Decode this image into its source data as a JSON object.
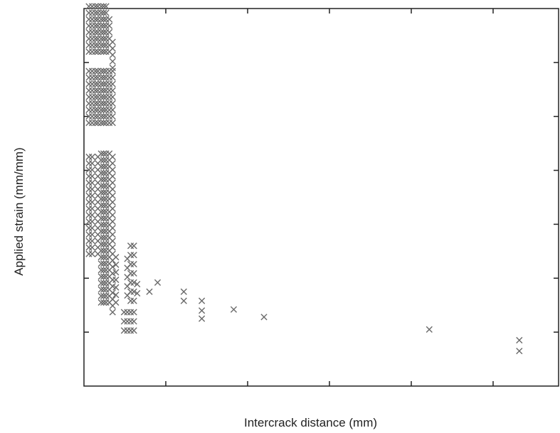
{
  "chart_data": {
    "type": "scatter",
    "title": "",
    "xlabel": "Intercrack distance (mm)",
    "ylabel": "Applied strain (mm/mm)",
    "xlim": [
      0,
      5.8
    ],
    "ylim": [
      0,
      7
    ],
    "xticks": [
      1,
      2,
      3,
      4,
      5
    ],
    "yticks": [
      1,
      2,
      3,
      4,
      5,
      6
    ],
    "tick_labels_visible": false,
    "grid": false,
    "legend": "none",
    "marker": "x",
    "marker_color": "#6a6a6a",
    "series": [
      {
        "columns": [
          {
            "x": 0.06,
            "y_start": 2.45,
            "y_end": 4.32,
            "step": 0.12
          },
          {
            "x": 0.06,
            "y_start": 4.88,
            "y_end": 5.85,
            "step": 0.12
          },
          {
            "x": 0.06,
            "y_start": 6.2,
            "y_end": 7.07,
            "step": 0.12
          },
          {
            "x": 0.1,
            "y_start": 2.45,
            "y_end": 4.32,
            "step": 0.12
          },
          {
            "x": 0.1,
            "y_start": 4.88,
            "y_end": 5.85,
            "step": 0.12
          },
          {
            "x": 0.1,
            "y_start": 6.2,
            "y_end": 7.07,
            "step": 0.12
          },
          {
            "x": 0.14,
            "y_start": 4.88,
            "y_end": 5.85,
            "step": 0.12
          },
          {
            "x": 0.14,
            "y_start": 6.2,
            "y_end": 7.07,
            "step": 0.12
          },
          {
            "x": 0.17,
            "y_start": 2.45,
            "y_end": 4.32,
            "step": 0.12
          },
          {
            "x": 0.17,
            "y_start": 4.88,
            "y_end": 5.85,
            "step": 0.12
          },
          {
            "x": 0.17,
            "y_start": 6.2,
            "y_end": 7.07,
            "step": 0.12
          },
          {
            "x": 0.21,
            "y_start": 1.55,
            "y_end": 4.32,
            "step": 0.12
          },
          {
            "x": 0.21,
            "y_start": 4.88,
            "y_end": 5.85,
            "step": 0.12
          },
          {
            "x": 0.21,
            "y_start": 6.2,
            "y_end": 7.07,
            "step": 0.12
          },
          {
            "x": 0.24,
            "y_start": 1.55,
            "y_end": 4.32,
            "step": 0.12
          },
          {
            "x": 0.24,
            "y_start": 4.88,
            "y_end": 5.85,
            "step": 0.12
          },
          {
            "x": 0.24,
            "y_start": 6.2,
            "y_end": 7.07,
            "step": 0.12
          },
          {
            "x": 0.27,
            "y_start": 1.55,
            "y_end": 4.32,
            "step": 0.12
          },
          {
            "x": 0.27,
            "y_start": 4.88,
            "y_end": 5.85,
            "step": 0.12
          },
          {
            "x": 0.27,
            "y_start": 6.2,
            "y_end": 7.07,
            "step": 0.12
          },
          {
            "x": 0.31,
            "y_start": 1.55,
            "y_end": 4.32,
            "step": 0.12
          },
          {
            "x": 0.31,
            "y_start": 4.88,
            "y_end": 5.85,
            "step": 0.12
          },
          {
            "x": 0.31,
            "y_start": 6.2,
            "y_end": 6.9,
            "step": 0.12
          },
          {
            "x": 0.35,
            "y_start": 1.37,
            "y_end": 4.32,
            "step": 0.12
          },
          {
            "x": 0.35,
            "y_start": 4.88,
            "y_end": 5.85,
            "step": 0.12
          },
          {
            "x": 0.35,
            "y_start": 5.9,
            "y_end": 6.4,
            "step": 0.12
          },
          {
            "x": 0.39,
            "y_start": 1.55,
            "y_end": 2.4,
            "step": 0.14
          },
          {
            "x": 0.49,
            "y_start": 1.03,
            "y_end": 1.38,
            "step": 0.17
          },
          {
            "x": 0.53,
            "y_start": 1.03,
            "y_end": 1.38,
            "step": 0.17
          },
          {
            "x": 0.53,
            "y_start": 1.68,
            "y_end": 2.37,
            "step": 0.17
          },
          {
            "x": 0.57,
            "y_start": 1.03,
            "y_end": 1.38,
            "step": 0.17
          },
          {
            "x": 0.57,
            "y_start": 1.58,
            "y_end": 2.75,
            "step": 0.17
          },
          {
            "x": 0.61,
            "y_start": 1.58,
            "y_end": 2.75,
            "step": 0.17
          },
          {
            "x": 0.61,
            "y_start": 1.03,
            "y_end": 1.38,
            "step": 0.17
          },
          {
            "x": 0.65,
            "y_start": 1.72,
            "y_end": 2.05,
            "step": 0.17
          }
        ],
        "points": [
          [
            0.8,
            1.75
          ],
          [
            0.9,
            1.92
          ],
          [
            1.22,
            1.58
          ],
          [
            1.22,
            1.75
          ],
          [
            1.44,
            1.25
          ],
          [
            1.44,
            1.4
          ],
          [
            1.44,
            1.58
          ],
          [
            1.83,
            1.42
          ],
          [
            2.2,
            1.28
          ],
          [
            4.22,
            1.05
          ],
          [
            5.32,
            0.65
          ],
          [
            5.32,
            0.85
          ]
        ]
      }
    ]
  }
}
